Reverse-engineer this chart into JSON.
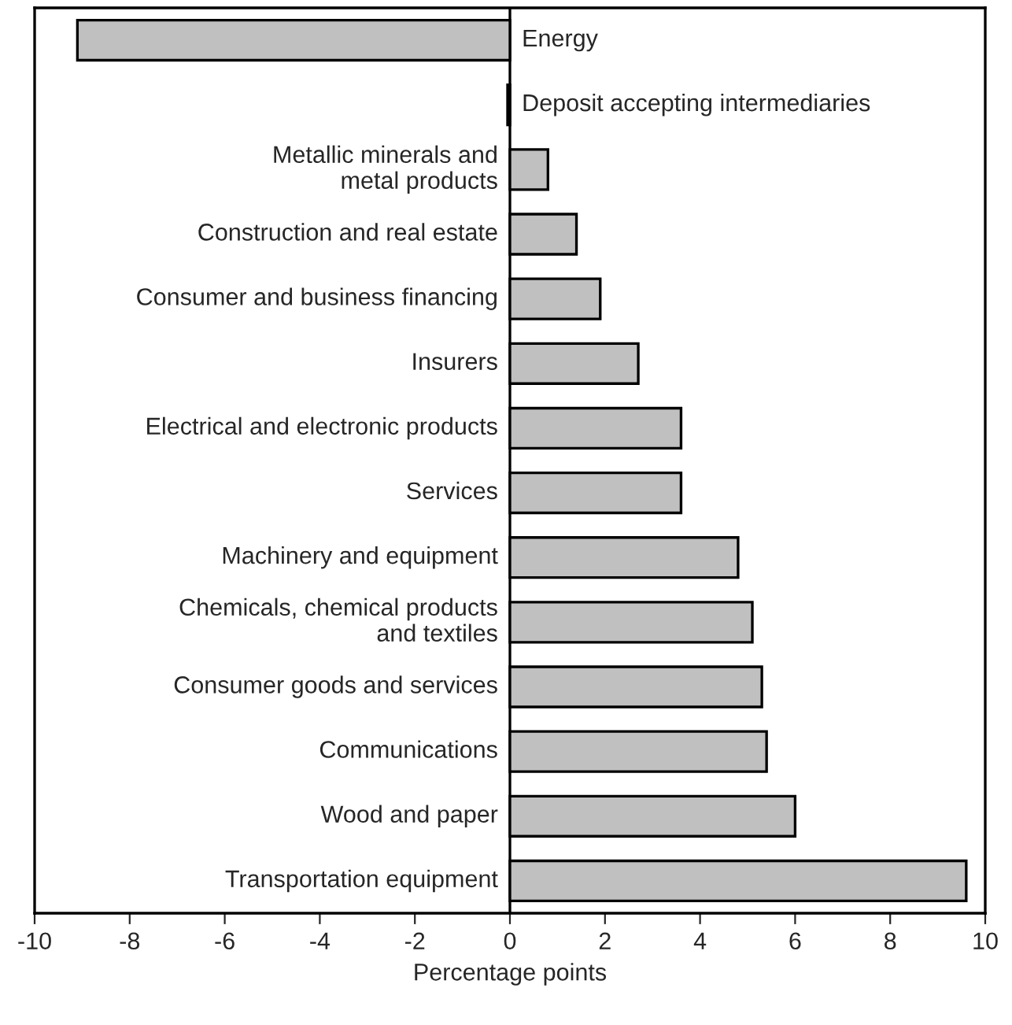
{
  "chart_data": {
    "type": "bar",
    "orientation": "horizontal",
    "xlabel": "Percentage points",
    "categories": [
      "Energy",
      "Deposit accepting intermediaries",
      "Metallic minerals and\nmetal products",
      "Construction and real estate",
      "Consumer and business financing",
      "Insurers",
      "Electrical and electronic products",
      "Services",
      "Machinery and equipment",
      "Chemicals, chemical products\nand textiles",
      "Consumer goods and services",
      "Communications",
      "Wood and paper",
      "Transportation equipment"
    ],
    "values": [
      -9.1,
      -0.05,
      0.8,
      1.4,
      1.9,
      2.7,
      3.6,
      3.6,
      4.8,
      5.1,
      5.3,
      5.4,
      6.0,
      9.6
    ],
    "color": "#c0c0c0",
    "xlim": [
      -10,
      10
    ],
    "xticks": [
      -10,
      -8,
      -6,
      -4,
      -2,
      0,
      2,
      4,
      6,
      8,
      10
    ],
    "grid": false,
    "legend": false,
    "tick_labels": "x"
  }
}
